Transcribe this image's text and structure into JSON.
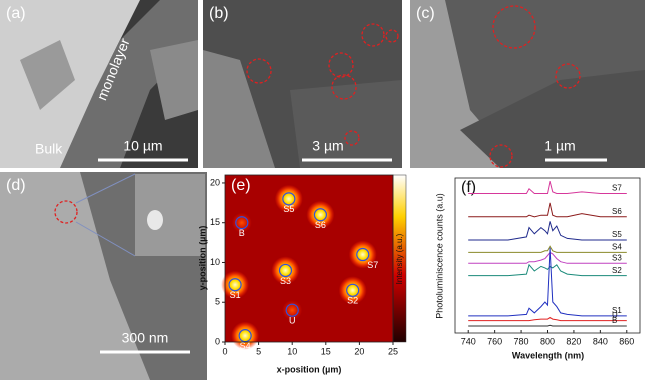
{
  "panels": [
    {
      "label": "(a)",
      "annotations": [
        "monolayer",
        "Bulk"
      ],
      "scale_bar": "10 µm"
    },
    {
      "label": "(b)",
      "scale_bar": "3 µm"
    },
    {
      "label": "(c)",
      "scale_bar": "1 µm"
    },
    {
      "label": "(d)",
      "scale_bar": "300 nm"
    }
  ],
  "map": {
    "label": "(e)",
    "x_label": "x-position (µm)",
    "y_label": "y-position (µm)",
    "colorbar_label": "Intensity (a.u.)",
    "xlim": [
      0,
      25
    ],
    "ylim": [
      0,
      21
    ],
    "xticks": [
      0,
      5,
      10,
      15,
      20,
      25
    ],
    "yticks": [
      0,
      5,
      10,
      15,
      20
    ],
    "points": [
      {
        "label": "S1",
        "x": 1.5,
        "y": 7.2
      },
      {
        "label": "S2",
        "x": 19,
        "y": 6.5
      },
      {
        "label": "S3",
        "x": 9,
        "y": 9
      },
      {
        "label": "S4",
        "x": 3,
        "y": 0.8
      },
      {
        "label": "S5",
        "x": 9.5,
        "y": 18
      },
      {
        "label": "S6",
        "x": 14.2,
        "y": 16
      },
      {
        "label": "S7",
        "x": 20.5,
        "y": 11
      },
      {
        "label": "B",
        "x": 2.5,
        "y": 15
      },
      {
        "label": "U",
        "x": 10,
        "y": 4
      }
    ]
  },
  "spectra": {
    "label": "(f)",
    "type": "line",
    "x_label": "Wavelength (nm)",
    "y_label": "Photoluminiscence counts (a.u)",
    "xlim": [
      730,
      870
    ],
    "ylim": [
      0,
      100
    ],
    "xticks": [
      740,
      760,
      780,
      800,
      820,
      840,
      860
    ],
    "x": [
      740,
      770,
      784,
      786,
      790,
      795,
      798,
      800,
      802,
      804,
      807,
      810,
      815,
      826,
      840,
      860
    ],
    "series": [
      {
        "name": "S7",
        "color": "#d6379b",
        "values": [
          90,
          90,
          90,
          93,
          90,
          90,
          90,
          90,
          98,
          91,
          90,
          90,
          90,
          91,
          90,
          90
        ]
      },
      {
        "name": "S6",
        "color": "#8b1a1a",
        "values": [
          75,
          75,
          75,
          76,
          75,
          76,
          76,
          76,
          84,
          76,
          75,
          75,
          75,
          77,
          75,
          75
        ]
      },
      {
        "name": "S5",
        "color": "#1f2a8c",
        "values": [
          60,
          60,
          62,
          68,
          64,
          68,
          66,
          64,
          72,
          66,
          69,
          63,
          61,
          60,
          60,
          60
        ]
      },
      {
        "name": "S4",
        "color": "#8a8a2a",
        "values": [
          52,
          52,
          52,
          52,
          52,
          52,
          53,
          53,
          56,
          53,
          52,
          52,
          52,
          52,
          52,
          52
        ]
      },
      {
        "name": "S3",
        "color": "#c040c0",
        "values": [
          45,
          45,
          45,
          46,
          46,
          47,
          48,
          50,
          52,
          51,
          48,
          46,
          45,
          45,
          45,
          45
        ]
      },
      {
        "name": "S2",
        "color": "#1a8a7a",
        "values": [
          37,
          37,
          38,
          44,
          40,
          43,
          42,
          41,
          43,
          42,
          44,
          40,
          38,
          37,
          37,
          37
        ]
      },
      {
        "name": "S1",
        "color": "#2030c0",
        "values": [
          11,
          11,
          12,
          16,
          13,
          17,
          20,
          18,
          55,
          20,
          17,
          13,
          12,
          11,
          11,
          11
        ]
      },
      {
        "name": "U",
        "color": "#e02020",
        "values": [
          8,
          8,
          8,
          8,
          8.5,
          9,
          9,
          9,
          10,
          9,
          8.5,
          8,
          8,
          8,
          8,
          8
        ]
      },
      {
        "name": "B",
        "color": "#333333",
        "values": [
          4.5,
          4.5,
          4.5,
          4.5,
          4.5,
          4.5,
          4.5,
          4.5,
          5,
          4.5,
          4.5,
          4.5,
          4.5,
          4.5,
          4.5,
          4.5
        ]
      }
    ]
  }
}
